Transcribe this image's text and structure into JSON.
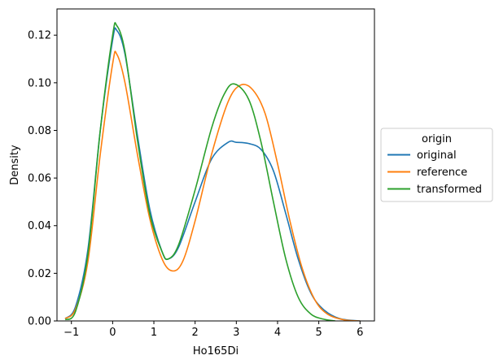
{
  "chart_data": {
    "type": "line",
    "xlabel": "Ho165Di",
    "ylabel": "Density",
    "xlim": [
      -1.35,
      6.35
    ],
    "ylim": [
      0,
      0.131
    ],
    "x_ticks": [
      -1,
      0,
      1,
      2,
      3,
      4,
      5,
      6
    ],
    "x_tick_labels": [
      "−1",
      "0",
      "1",
      "2",
      "3",
      "4",
      "5",
      "6"
    ],
    "y_ticks": [
      0.0,
      0.02,
      0.04,
      0.06,
      0.08,
      0.1,
      0.12
    ],
    "y_tick_labels": [
      "0.00",
      "0.02",
      "0.04",
      "0.06",
      "0.08",
      "0.10",
      "0.12"
    ],
    "grid": false,
    "legend": {
      "title": "origin",
      "placement": "outside-right"
    },
    "series": [
      {
        "name": "original",
        "color": "#1f77b4",
        "x": [
          -1.15,
          -0.9,
          -0.6,
          -0.3,
          0.0,
          0.1,
          0.3,
          0.6,
          0.9,
          1.2,
          1.35,
          1.6,
          2.0,
          2.4,
          2.8,
          3.0,
          3.3,
          3.6,
          3.9,
          4.2,
          4.5,
          4.8,
          5.1,
          5.5,
          6.0
        ],
        "y": [
          0.001,
          0.006,
          0.03,
          0.08,
          0.118,
          0.122,
          0.112,
          0.078,
          0.047,
          0.029,
          0.026,
          0.031,
          0.05,
          0.068,
          0.075,
          0.075,
          0.0745,
          0.072,
          0.063,
          0.045,
          0.026,
          0.012,
          0.005,
          0.001,
          0.0
        ]
      },
      {
        "name": "reference",
        "color": "#ff7f0e",
        "x": [
          -1.15,
          -0.9,
          -0.6,
          -0.3,
          0.0,
          0.1,
          0.3,
          0.6,
          0.9,
          1.2,
          1.45,
          1.7,
          2.0,
          2.4,
          2.8,
          3.1,
          3.4,
          3.7,
          4.0,
          4.3,
          4.6,
          4.9,
          5.2,
          5.6,
          6.0
        ],
        "y": [
          0.001,
          0.005,
          0.025,
          0.07,
          0.108,
          0.112,
          0.1,
          0.07,
          0.043,
          0.026,
          0.021,
          0.025,
          0.042,
          0.07,
          0.092,
          0.099,
          0.097,
          0.087,
          0.066,
          0.042,
          0.022,
          0.009,
          0.003,
          0.0005,
          0.0
        ]
      },
      {
        "name": "transformed",
        "color": "#2ca02c",
        "x": [
          -1.15,
          -0.9,
          -0.6,
          -0.3,
          0.0,
          0.1,
          0.3,
          0.6,
          0.9,
          1.2,
          1.35,
          1.6,
          2.0,
          2.4,
          2.7,
          2.95,
          3.3,
          3.6,
          3.9,
          4.2,
          4.5,
          4.8,
          5.1,
          5.4
        ],
        "y": [
          0.0005,
          0.004,
          0.028,
          0.08,
          0.12,
          0.124,
          0.113,
          0.076,
          0.045,
          0.029,
          0.026,
          0.032,
          0.055,
          0.081,
          0.095,
          0.0995,
          0.093,
          0.075,
          0.05,
          0.026,
          0.01,
          0.003,
          0.0008,
          0.0
        ]
      }
    ]
  }
}
